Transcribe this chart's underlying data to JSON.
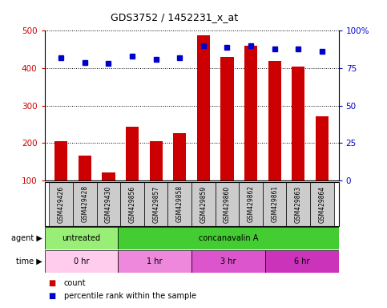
{
  "title": "GDS3752 / 1452231_x_at",
  "samples": [
    "GSM429426",
    "GSM429428",
    "GSM429430",
    "GSM429856",
    "GSM429857",
    "GSM429858",
    "GSM429859",
    "GSM429860",
    "GSM429862",
    "GSM429861",
    "GSM429863",
    "GSM429864"
  ],
  "counts": [
    205,
    165,
    120,
    243,
    205,
    225,
    487,
    430,
    460,
    420,
    405,
    272
  ],
  "percentile": [
    82,
    79,
    78,
    83,
    81,
    82,
    90,
    89,
    90,
    88,
    88,
    86
  ],
  "ylim_left": [
    100,
    500
  ],
  "ylim_right": [
    0,
    100
  ],
  "yticks_left": [
    100,
    200,
    300,
    400,
    500
  ],
  "yticks_right": [
    0,
    25,
    50,
    75,
    100
  ],
  "yticklabels_right": [
    "0",
    "25",
    "50",
    "75",
    "100%"
  ],
  "bar_color": "#cc0000",
  "dot_color": "#0000cc",
  "agent_row": [
    {
      "label": "untreated",
      "start": 0,
      "end": 3,
      "color": "#99ee77"
    },
    {
      "label": "concanavalin A",
      "start": 3,
      "end": 12,
      "color": "#44cc33"
    }
  ],
  "time_row": [
    {
      "label": "0 hr",
      "start": 0,
      "end": 3,
      "color": "#ffccee"
    },
    {
      "label": "1 hr",
      "start": 3,
      "end": 6,
      "color": "#ee88dd"
    },
    {
      "label": "3 hr",
      "start": 6,
      "end": 9,
      "color": "#dd55cc"
    },
    {
      "label": "6 hr",
      "start": 9,
      "end": 12,
      "color": "#cc33bb"
    }
  ],
  "agent_label": "agent",
  "time_label": "time",
  "legend_count_label": "count",
  "legend_pct_label": "percentile rank within the sample",
  "bg_color": "#ffffff",
  "tick_label_color_left": "#cc0000",
  "tick_label_color_right": "#0000cc",
  "sample_bg_color": "#cccccc"
}
